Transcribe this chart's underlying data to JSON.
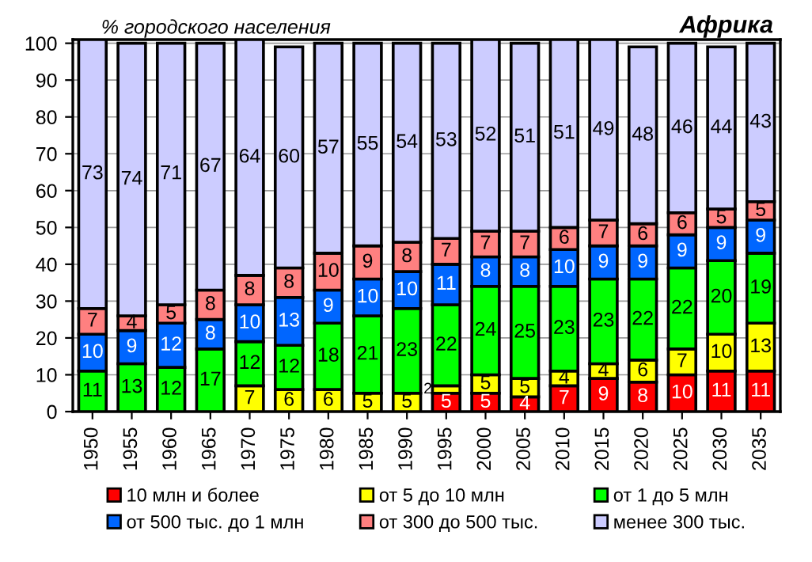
{
  "chart_data": {
    "type": "bar",
    "stacked": true,
    "title": "Африка",
    "ylabel": "% городского населения",
    "categories": [
      "1950",
      "1955",
      "1960",
      "1965",
      "1970",
      "1975",
      "1980",
      "1985",
      "1990",
      "1995",
      "2000",
      "2005",
      "2010",
      "2015",
      "2020",
      "2025",
      "2030",
      "2035"
    ],
    "series": [
      {
        "name": "10 млн и более",
        "color": "#ff0000",
        "values": [
          null,
          null,
          null,
          null,
          null,
          null,
          null,
          null,
          null,
          5,
          5,
          4,
          7,
          9,
          8,
          10,
          11,
          11
        ]
      },
      {
        "name": "от 5 до 10 млн",
        "color": "#ffff00",
        "values": [
          null,
          null,
          null,
          null,
          7,
          6,
          6,
          5,
          5,
          2,
          5,
          5,
          4,
          4,
          6,
          7,
          10,
          13
        ]
      },
      {
        "name": "от 1 до 5 млн",
        "color": "#00ff00",
        "values": [
          11,
          13,
          12,
          17,
          12,
          12,
          18,
          21,
          23,
          22,
          24,
          25,
          23,
          23,
          22,
          22,
          20,
          19
        ]
      },
      {
        "name": "от 500 тыс. до 1 млн",
        "color": "#0066ff",
        "values": [
          10,
          9,
          12,
          8,
          10,
          13,
          9,
          10,
          10,
          11,
          8,
          8,
          10,
          9,
          9,
          9,
          9,
          9
        ]
      },
      {
        "name": "от 300 до 500 тыс.",
        "color": "#ff8080",
        "values": [
          7,
          4,
          5,
          8,
          8,
          8,
          10,
          9,
          8,
          7,
          7,
          7,
          6,
          7,
          6,
          6,
          5,
          5
        ]
      },
      {
        "name": "менее 300 тыс.",
        "color": "#ccccff",
        "values": [
          73,
          74,
          71,
          67,
          64,
          60,
          57,
          55,
          54,
          53,
          52,
          51,
          51,
          49,
          48,
          46,
          44,
          43
        ]
      }
    ],
    "ylim": [
      0,
      101
    ],
    "yticks": [
      0,
      10,
      20,
      30,
      40,
      50,
      60,
      70,
      80,
      90,
      100
    ],
    "grid": "y",
    "data_labels": true,
    "legend": "bottom"
  }
}
